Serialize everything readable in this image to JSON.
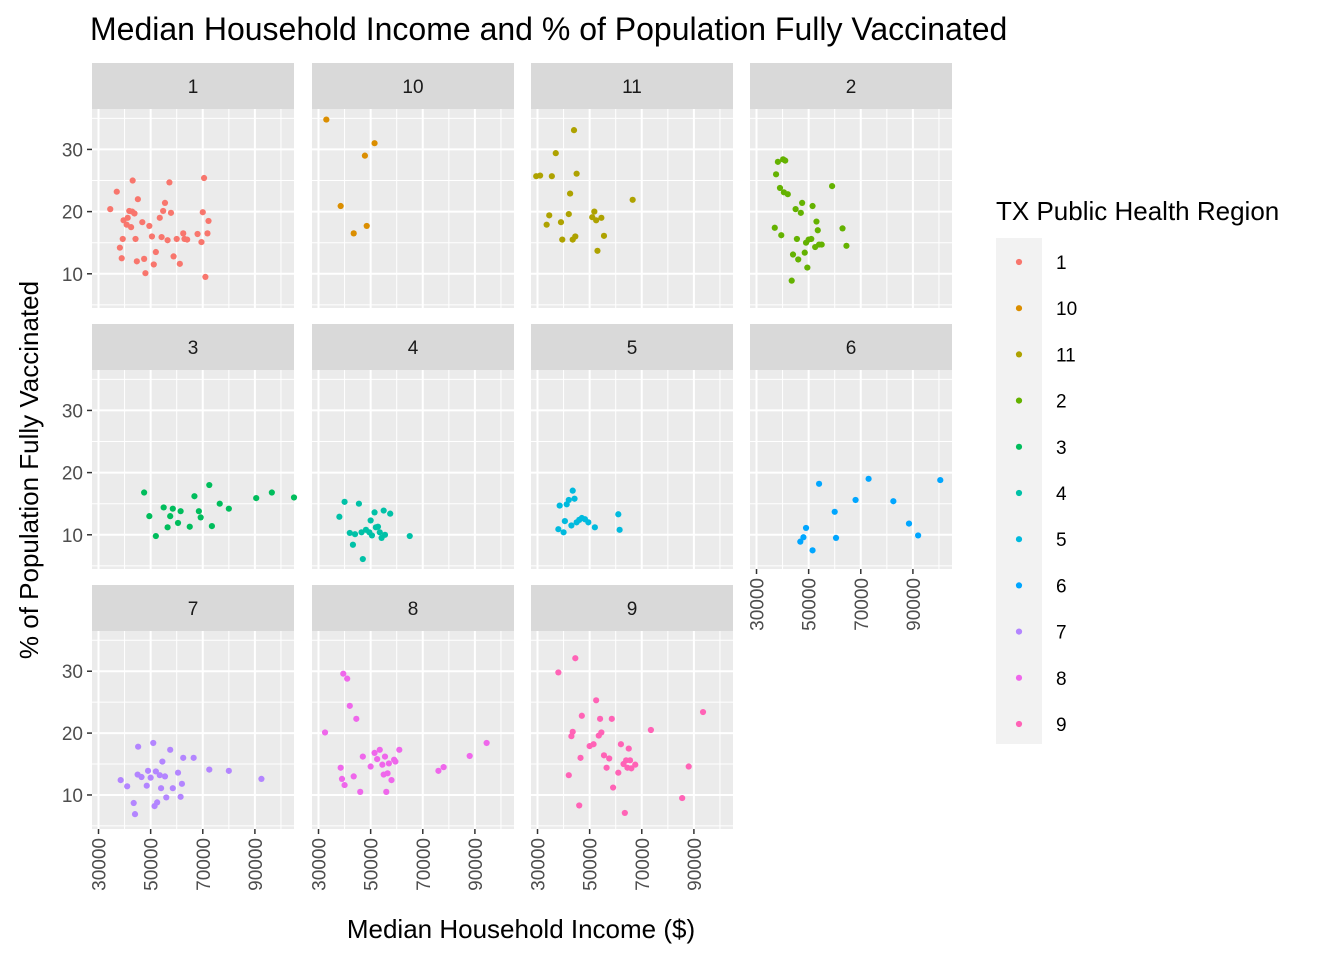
{
  "chart_data": {
    "type": "scatter",
    "title": "Median Household Income and % of Population Fully Vaccinated",
    "xlabel": "Median Household Income ($)",
    "ylabel": "% of Population Fully Vaccinated",
    "xlim": [
      27500,
      105000
    ],
    "ylim": [
      4.5,
      36.5
    ],
    "x_ticks": [
      30000,
      50000,
      70000,
      90000
    ],
    "x_tick_labels": [
      "30000",
      "50000",
      "70000",
      "90000"
    ],
    "y_ticks": [
      10,
      20,
      30
    ],
    "y_tick_labels": [
      "10",
      "20",
      "30"
    ],
    "grid": true,
    "facet_by": "TX Public Health Region",
    "legend": {
      "title": "TX Public Health Region",
      "position": "right",
      "entries": [
        {
          "label": "1",
          "color": "#F8766D"
        },
        {
          "label": "10",
          "color": "#DB8E00"
        },
        {
          "label": "11",
          "color": "#AEA200"
        },
        {
          "label": "2",
          "color": "#64B200"
        },
        {
          "label": "3",
          "color": "#00BD5C"
        },
        {
          "label": "4",
          "color": "#00C1A7"
        },
        {
          "label": "5",
          "color": "#00BADE"
        },
        {
          "label": "6",
          "color": "#00A6FF"
        },
        {
          "label": "7",
          "color": "#B385FF"
        },
        {
          "label": "8",
          "color": "#EF67EB"
        },
        {
          "label": "9",
          "color": "#FF63B6"
        }
      ]
    },
    "panels": [
      {
        "region": "1",
        "color": "#F8766D",
        "points": [
          [
            34500,
            20.4
          ],
          [
            37000,
            23.2
          ],
          [
            38200,
            14.2
          ],
          [
            38900,
            12.5
          ],
          [
            39300,
            15.6
          ],
          [
            39600,
            18.6
          ],
          [
            40800,
            17.9
          ],
          [
            41200,
            19.0
          ],
          [
            41800,
            20.1
          ],
          [
            42500,
            17.5
          ],
          [
            42900,
            20.0
          ],
          [
            43100,
            25.0
          ],
          [
            43800,
            19.7
          ],
          [
            44200,
            15.6
          ],
          [
            44700,
            12.0
          ],
          [
            45100,
            22.0
          ],
          [
            46800,
            18.3
          ],
          [
            47500,
            12.4
          ],
          [
            48000,
            10.1
          ],
          [
            49500,
            17.7
          ],
          [
            50500,
            16.0
          ],
          [
            51200,
            11.5
          ],
          [
            52000,
            13.5
          ],
          [
            53500,
            19.0
          ],
          [
            54200,
            15.9
          ],
          [
            54800,
            20.1
          ],
          [
            55500,
            21.4
          ],
          [
            56500,
            15.4
          ],
          [
            57200,
            24.7
          ],
          [
            57800,
            19.8
          ],
          [
            58800,
            12.8
          ],
          [
            60000,
            15.6
          ],
          [
            61200,
            11.6
          ],
          [
            62500,
            16.5
          ],
          [
            63000,
            15.6
          ],
          [
            64000,
            15.5
          ],
          [
            68000,
            16.4
          ],
          [
            69500,
            15.1
          ],
          [
            70000,
            19.9
          ],
          [
            70500,
            25.4
          ],
          [
            71000,
            9.5
          ],
          [
            71800,
            16.5
          ],
          [
            72200,
            18.5
          ]
        ]
      },
      {
        "region": "10",
        "color": "#DB8E00",
        "points": [
          [
            33000,
            34.8
          ],
          [
            38500,
            20.9
          ],
          [
            43500,
            16.5
          ],
          [
            47800,
            29.0
          ],
          [
            48500,
            17.7
          ],
          [
            51500,
            31.0
          ]
        ]
      },
      {
        "region": "11",
        "color": "#AEA200",
        "points": [
          [
            29500,
            25.7
          ],
          [
            31000,
            25.8
          ],
          [
            33500,
            17.9
          ],
          [
            34500,
            19.4
          ],
          [
            35500,
            25.7
          ],
          [
            37000,
            29.4
          ],
          [
            39000,
            18.3
          ],
          [
            39500,
            15.5
          ],
          [
            42000,
            19.6
          ],
          [
            42500,
            22.9
          ],
          [
            43500,
            15.5
          ],
          [
            44000,
            33.1
          ],
          [
            44500,
            16.0
          ],
          [
            45000,
            26.1
          ],
          [
            51000,
            19.1
          ],
          [
            51800,
            20.0
          ],
          [
            52500,
            18.6
          ],
          [
            53000,
            13.7
          ],
          [
            54500,
            19.0
          ],
          [
            55500,
            16.1
          ],
          [
            66500,
            21.9
          ]
        ]
      },
      {
        "region": "2",
        "color": "#64B200",
        "points": [
          [
            37000,
            17.4
          ],
          [
            37500,
            26.0
          ],
          [
            38200,
            28.0
          ],
          [
            39000,
            23.8
          ],
          [
            39500,
            16.2
          ],
          [
            40200,
            28.4
          ],
          [
            40500,
            23.1
          ],
          [
            41000,
            28.2
          ],
          [
            42000,
            22.8
          ],
          [
            43500,
            8.9
          ],
          [
            44000,
            13.1
          ],
          [
            45000,
            20.4
          ],
          [
            45500,
            15.6
          ],
          [
            46000,
            12.3
          ],
          [
            47000,
            19.8
          ],
          [
            47500,
            21.4
          ],
          [
            48500,
            13.4
          ],
          [
            49000,
            15.0
          ],
          [
            49500,
            11.0
          ],
          [
            50000,
            15.5
          ],
          [
            51000,
            15.6
          ],
          [
            51500,
            20.9
          ],
          [
            52500,
            14.3
          ],
          [
            53000,
            18.4
          ],
          [
            53500,
            17.0
          ],
          [
            54000,
            14.7
          ],
          [
            55000,
            14.7
          ],
          [
            59000,
            24.1
          ],
          [
            63000,
            17.3
          ],
          [
            64500,
            14.5
          ]
        ]
      },
      {
        "region": "3",
        "color": "#00BD5C",
        "points": [
          [
            47500,
            16.8
          ],
          [
            49500,
            13.0
          ],
          [
            52000,
            9.8
          ],
          [
            55000,
            14.4
          ],
          [
            56500,
            11.2
          ],
          [
            57500,
            13.0
          ],
          [
            58500,
            14.2
          ],
          [
            60500,
            11.9
          ],
          [
            61500,
            13.8
          ],
          [
            65000,
            11.3
          ],
          [
            66800,
            16.2
          ],
          [
            68500,
            13.8
          ],
          [
            69200,
            12.8
          ],
          [
            72500,
            18.0
          ],
          [
            73500,
            11.4
          ],
          [
            76500,
            15.0
          ],
          [
            80000,
            14.2
          ],
          [
            90500,
            15.9
          ],
          [
            96500,
            16.8
          ],
          [
            105000,
            16.0
          ]
        ]
      },
      {
        "region": "4",
        "color": "#00C1A7",
        "points": [
          [
            38000,
            12.9
          ],
          [
            40000,
            15.3
          ],
          [
            42000,
            10.3
          ],
          [
            43200,
            8.4
          ],
          [
            44000,
            10.1
          ],
          [
            45500,
            15.0
          ],
          [
            46500,
            10.4
          ],
          [
            47000,
            6.1
          ],
          [
            48200,
            10.8
          ],
          [
            49500,
            10.4
          ],
          [
            50000,
            12.3
          ],
          [
            50500,
            9.9
          ],
          [
            51500,
            13.6
          ],
          [
            52000,
            11.2
          ],
          [
            52800,
            11.3
          ],
          [
            53500,
            10.4
          ],
          [
            54200,
            9.5
          ],
          [
            55000,
            13.9
          ],
          [
            55500,
            10.0
          ],
          [
            57500,
            13.4
          ],
          [
            65000,
            9.8
          ]
        ]
      },
      {
        "region": "5",
        "color": "#00BADE",
        "points": [
          [
            38000,
            10.9
          ],
          [
            38500,
            14.7
          ],
          [
            40000,
            10.4
          ],
          [
            40500,
            12.2
          ],
          [
            41200,
            14.9
          ],
          [
            42000,
            15.6
          ],
          [
            43000,
            11.5
          ],
          [
            43500,
            17.1
          ],
          [
            44200,
            15.8
          ],
          [
            45000,
            12.0
          ],
          [
            46000,
            12.4
          ],
          [
            47000,
            12.7
          ],
          [
            48200,
            12.5
          ],
          [
            49500,
            12.0
          ],
          [
            52000,
            11.2
          ],
          [
            61000,
            13.3
          ],
          [
            61500,
            10.8
          ]
        ]
      },
      {
        "region": "6",
        "color": "#00A6FF",
        "points": [
          [
            46800,
            8.9
          ],
          [
            48000,
            9.6
          ],
          [
            49000,
            11.1
          ],
          [
            51500,
            7.5
          ],
          [
            54000,
            18.2
          ],
          [
            60000,
            13.7
          ],
          [
            60500,
            9.5
          ],
          [
            68000,
            15.6
          ],
          [
            73000,
            19.0
          ],
          [
            82500,
            15.4
          ],
          [
            88500,
            11.8
          ],
          [
            92000,
            9.9
          ],
          [
            100500,
            18.8
          ]
        ]
      },
      {
        "region": "7",
        "color": "#B385FF",
        "points": [
          [
            38500,
            12.4
          ],
          [
            41000,
            11.4
          ],
          [
            43500,
            8.7
          ],
          [
            44000,
            6.9
          ],
          [
            45000,
            13.3
          ],
          [
            45200,
            17.8
          ],
          [
            46500,
            12.9
          ],
          [
            48500,
            11.5
          ],
          [
            49000,
            13.9
          ],
          [
            50000,
            12.8
          ],
          [
            51000,
            18.4
          ],
          [
            51500,
            8.2
          ],
          [
            52000,
            13.8
          ],
          [
            52500,
            8.8
          ],
          [
            53500,
            13.2
          ],
          [
            54000,
            11.1
          ],
          [
            54500,
            15.4
          ],
          [
            55500,
            13.0
          ],
          [
            56000,
            9.6
          ],
          [
            57500,
            17.3
          ],
          [
            58500,
            11.1
          ],
          [
            60500,
            13.6
          ],
          [
            61500,
            9.7
          ],
          [
            62000,
            11.8
          ],
          [
            62500,
            16.0
          ],
          [
            66500,
            16.0
          ],
          [
            72500,
            14.1
          ],
          [
            80000,
            13.9
          ],
          [
            92500,
            12.6
          ]
        ]
      },
      {
        "region": "8",
        "color": "#EF67EB",
        "points": [
          [
            32500,
            20.1
          ],
          [
            38500,
            14.4
          ],
          [
            39000,
            12.6
          ],
          [
            39500,
            29.6
          ],
          [
            40000,
            11.6
          ],
          [
            41000,
            28.8
          ],
          [
            42000,
            24.4
          ],
          [
            43500,
            13.0
          ],
          [
            44500,
            22.3
          ],
          [
            46000,
            10.5
          ],
          [
            47000,
            16.2
          ],
          [
            50000,
            14.6
          ],
          [
            51500,
            16.8
          ],
          [
            52500,
            15.8
          ],
          [
            53500,
            17.3
          ],
          [
            54500,
            14.9
          ],
          [
            55000,
            13.3
          ],
          [
            55500,
            16.2
          ],
          [
            56000,
            10.5
          ],
          [
            56500,
            13.5
          ],
          [
            57000,
            15.1
          ],
          [
            58000,
            12.4
          ],
          [
            59000,
            15.7
          ],
          [
            59500,
            15.4
          ],
          [
            61000,
            17.3
          ],
          [
            76000,
            13.9
          ],
          [
            78000,
            14.5
          ],
          [
            88000,
            16.3
          ],
          [
            94500,
            18.4
          ]
        ]
      },
      {
        "region": "9",
        "color": "#FF63B6",
        "points": [
          [
            38000,
            29.8
          ],
          [
            42000,
            13.2
          ],
          [
            43000,
            19.5
          ],
          [
            43500,
            20.2
          ],
          [
            44500,
            32.1
          ],
          [
            46000,
            8.3
          ],
          [
            46500,
            16.0
          ],
          [
            47000,
            22.8
          ],
          [
            50000,
            17.9
          ],
          [
            51500,
            18.2
          ],
          [
            52500,
            25.3
          ],
          [
            53500,
            19.6
          ],
          [
            54000,
            22.3
          ],
          [
            54500,
            20.1
          ],
          [
            55500,
            16.4
          ],
          [
            56500,
            14.4
          ],
          [
            57500,
            15.9
          ],
          [
            58500,
            22.3
          ],
          [
            59000,
            11.2
          ],
          [
            61000,
            13.6
          ],
          [
            62000,
            18.2
          ],
          [
            63000,
            15.0
          ],
          [
            63500,
            7.1
          ],
          [
            64000,
            15.6
          ],
          [
            64500,
            14.4
          ],
          [
            65000,
            17.5
          ],
          [
            65500,
            15.6
          ],
          [
            66000,
            14.3
          ],
          [
            67500,
            14.9
          ],
          [
            73500,
            20.5
          ],
          [
            85500,
            9.5
          ],
          [
            88000,
            14.6
          ],
          [
            93500,
            23.4
          ]
        ]
      }
    ]
  }
}
